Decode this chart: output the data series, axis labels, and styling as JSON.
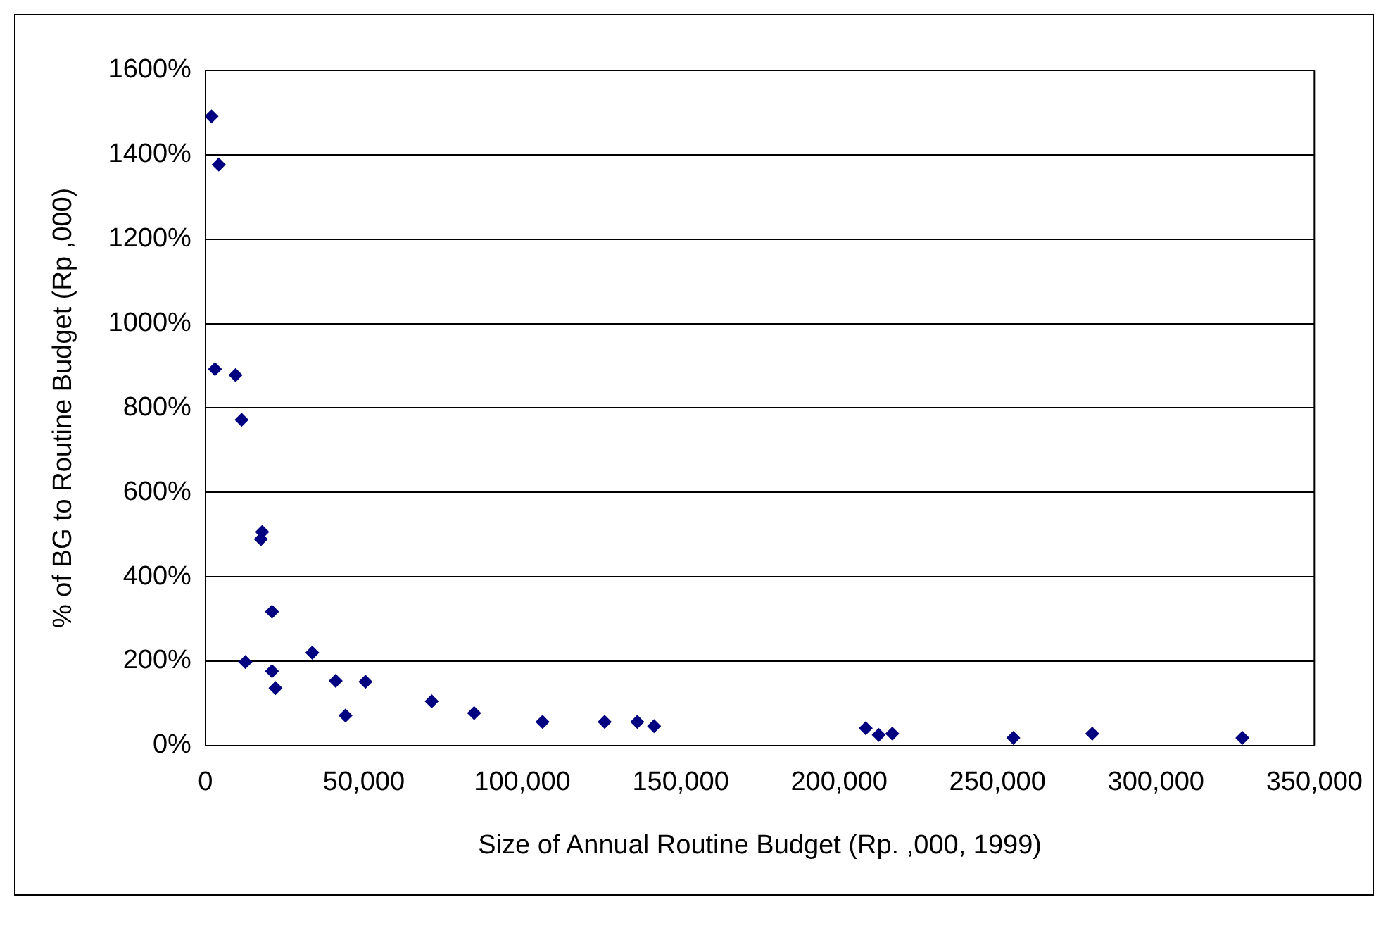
{
  "chart_data": {
    "type": "scatter",
    "xlabel": "Size of Annual Routine Budget (Rp. ,000, 1999)",
    "ylabel": "% of BG to Routine Budget (Rp ,000)",
    "x": [
      1900,
      4200,
      3000,
      9500,
      11400,
      17900,
      17500,
      21000,
      12600,
      33700,
      21000,
      22100,
      41100,
      50500,
      44200,
      71400,
      84800,
      106400,
      126000,
      136300,
      141600,
      208400,
      212500,
      216800,
      255000,
      279900,
      327300
    ],
    "series": [
      {
        "color": "#000080",
        "values": [
          1491,
          1377,
          892,
          878,
          772,
          506,
          489,
          317,
          198,
          220,
          176,
          136,
          153,
          151,
          71,
          105,
          77,
          56,
          56,
          56,
          46,
          41,
          25,
          28,
          18,
          28,
          18
        ]
      }
    ],
    "xlim": [
      0,
      350000
    ],
    "xticks": [
      {
        "value": 0,
        "label": "0"
      },
      {
        "value": 50000,
        "label": "50,000"
      },
      {
        "value": 100000,
        "label": "100,000"
      },
      {
        "value": 150000,
        "label": "150,000"
      },
      {
        "value": 200000,
        "label": "200,000"
      },
      {
        "value": 250000,
        "label": "250,000"
      },
      {
        "value": 300000,
        "label": "300,000"
      },
      {
        "value": 350000,
        "label": "350,000"
      }
    ],
    "ylim": [
      0,
      1600
    ],
    "yticks": [
      {
        "value": 0,
        "label": "0%"
      },
      {
        "value": 200,
        "label": "200%"
      },
      {
        "value": 400,
        "label": "400%"
      },
      {
        "value": 600,
        "label": "600%"
      },
      {
        "value": 800,
        "label": "800%"
      },
      {
        "value": 1000,
        "label": "1000%"
      },
      {
        "value": 1200,
        "label": "1200%"
      },
      {
        "value": 1400,
        "label": "1400%"
      },
      {
        "value": 1600,
        "label": "1600%"
      }
    ],
    "grid": "y",
    "legend": false,
    "marker": "diamond"
  }
}
